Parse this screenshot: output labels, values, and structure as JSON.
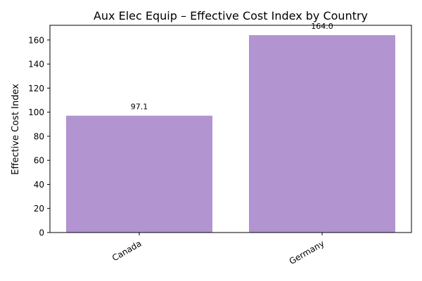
{
  "chart_data": {
    "type": "bar",
    "title": "Aux Elec Equip – Effective Cost Index by Country",
    "xlabel": "",
    "ylabel": "Effective Cost Index",
    "categories": [
      "Canada",
      "Germany"
    ],
    "values": [
      97.1,
      164.0
    ],
    "value_labels": [
      "97.1",
      "164.0"
    ],
    "ylim": [
      0,
      172.2
    ],
    "yticks": [
      0,
      20,
      40,
      60,
      80,
      100,
      120,
      140,
      160
    ],
    "ytick_labels": [
      "0",
      "20",
      "40",
      "60",
      "80",
      "100",
      "120",
      "140",
      "160"
    ],
    "bar_color": "#b294d1",
    "grid": false,
    "legend": "none"
  }
}
